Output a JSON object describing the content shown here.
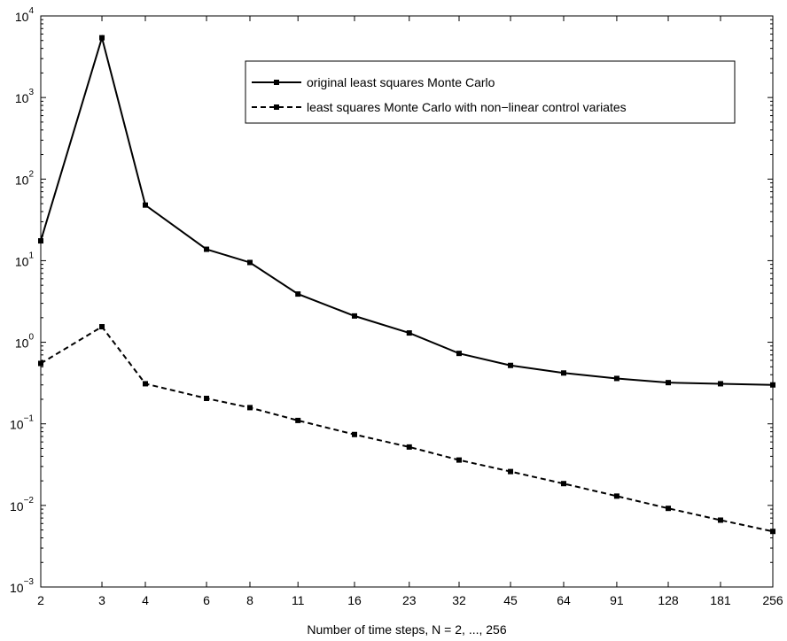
{
  "chart_data": {
    "type": "line",
    "title": "",
    "xlabel": "Number of time steps, N = 2, ..., 256",
    "ylabel": "",
    "x_scale": "log",
    "y_scale": "log",
    "xlim": [
      2,
      256
    ],
    "ylim": [
      0.001,
      10000
    ],
    "x_ticks": [
      2,
      3,
      4,
      6,
      8,
      11,
      16,
      23,
      32,
      45,
      64,
      91,
      128,
      181,
      256
    ],
    "x_tick_labels": [
      "2",
      "3",
      "4",
      "6",
      "8",
      "11",
      "16",
      "23",
      "32",
      "45",
      "64",
      "91",
      "128",
      "181",
      "256"
    ],
    "y_ticks": [
      {
        "base": "10",
        "exp": "−3",
        "value": 0.001
      },
      {
        "base": "10",
        "exp": "−2",
        "value": 0.01
      },
      {
        "base": "10",
        "exp": "−1",
        "value": 0.1
      },
      {
        "base": "10",
        "exp": "0",
        "value": 1
      },
      {
        "base": "10",
        "exp": "1",
        "value": 10
      },
      {
        "base": "10",
        "exp": "2",
        "value": 100
      },
      {
        "base": "10",
        "exp": "3",
        "value": 1000
      },
      {
        "base": "10",
        "exp": "4",
        "value": 10000
      }
    ],
    "grid": false,
    "legend_position": "top-right",
    "series": [
      {
        "name": "original least squares Monte Carlo",
        "line_style": "solid",
        "color": "#000000",
        "marker": "square",
        "x": [
          2,
          3,
          4,
          6,
          8,
          11,
          16,
          23,
          32,
          45,
          64,
          91,
          128,
          181,
          256
        ],
        "y": [
          17.5,
          5400,
          48,
          13.8,
          9.5,
          3.9,
          2.1,
          1.3,
          0.73,
          0.52,
          0.42,
          0.36,
          0.32,
          0.31,
          0.3
        ]
      },
      {
        "name": "least squares Monte Carlo with non−linear control variates",
        "line_style": "dashed",
        "color": "#000000",
        "marker": "square",
        "x": [
          2,
          3,
          4,
          6,
          8,
          11,
          16,
          23,
          32,
          45,
          64,
          91,
          128,
          181,
          256
        ],
        "y": [
          0.55,
          1.55,
          0.31,
          0.205,
          0.158,
          0.11,
          0.074,
          0.052,
          0.036,
          0.026,
          0.0185,
          0.013,
          0.0092,
          0.0066,
          0.0048
        ]
      }
    ]
  }
}
